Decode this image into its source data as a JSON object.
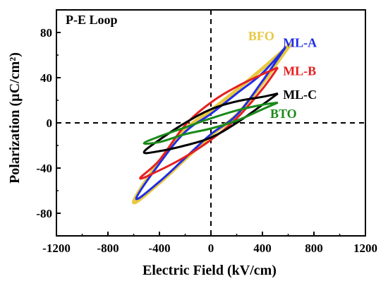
{
  "chart_data": {
    "type": "line",
    "title": "P-E Loop",
    "xlabel": "Electric Field (kV/cm)",
    "ylabel": "Polarization (µC/cm²)",
    "xlim": [
      -1200,
      1200
    ],
    "ylim": [
      -100,
      100
    ],
    "x_ticks": [
      -1200,
      -800,
      -400,
      0,
      400,
      800,
      1200
    ],
    "y_ticks": [
      -80,
      -40,
      0,
      40,
      80
    ],
    "grid": false,
    "legend": "direct labels near loop tips",
    "series": [
      {
        "name": "BFO",
        "color": "#e8c840",
        "upper": {
          "x": [
            620,
            500,
            400,
            200,
            0,
            -200,
            -400,
            -600
          ],
          "y": [
            70,
            58,
            48,
            29,
            11,
            -6,
            -34,
            -70
          ]
        },
        "lower": {
          "x": [
            -600,
            -400,
            -200,
            0,
            200,
            400,
            500,
            620
          ],
          "y": [
            -70,
            -53,
            -32,
            -11,
            7,
            35,
            51,
            70
          ]
        }
      },
      {
        "name": "ML-A",
        "color": "#1f2de6",
        "upper": {
          "x": [
            580,
            400,
            200,
            0,
            -200,
            -400,
            -580
          ],
          "y": [
            67,
            44,
            26,
            8,
            -8,
            -36,
            -67
          ]
        },
        "lower": {
          "x": [
            -580,
            -400,
            -200,
            0,
            200,
            400,
            580
          ],
          "y": [
            -67,
            -52,
            -31,
            -10,
            7,
            37,
            67
          ]
        }
      },
      {
        "name": "ML-B",
        "color": "#e62020",
        "upper": {
          "x": [
            520,
            400,
            200,
            0,
            -200,
            -400,
            -550
          ],
          "y": [
            49,
            43,
            32,
            18,
            -2,
            -33,
            -49
          ]
        },
        "lower": {
          "x": [
            -550,
            -400,
            -200,
            0,
            200,
            400,
            520
          ],
          "y": [
            -49,
            -42,
            -30,
            -15,
            4,
            30,
            49
          ]
        }
      },
      {
        "name": "ML-C",
        "color": "#000000",
        "upper": {
          "x": [
            520,
            400,
            200,
            0,
            -200,
            -400,
            -520
          ],
          "y": [
            26,
            23,
            19,
            12,
            0,
            -15,
            -26
          ]
        },
        "lower": {
          "x": [
            -520,
            -400,
            -200,
            0,
            200,
            400,
            520
          ],
          "y": [
            -26,
            -25,
            -20,
            -13,
            0,
            16,
            26
          ]
        }
      },
      {
        "name": "BTO",
        "color": "#1a8a1a",
        "upper": {
          "x": [
            520,
            400,
            200,
            0,
            -200,
            -400,
            -520
          ],
          "y": [
            18,
            16,
            11,
            4,
            -4,
            -12,
            -18
          ]
        },
        "lower": {
          "x": [
            -520,
            -400,
            -200,
            0,
            200,
            400,
            520
          ],
          "y": [
            -18,
            -17,
            -10,
            -5,
            2,
            12,
            18
          ]
        }
      }
    ],
    "labels": [
      {
        "text": "BFO",
        "x": 290,
        "y": 77,
        "color": "#e8c840"
      },
      {
        "text": "ML-A",
        "x": 560,
        "y": 71,
        "color": "#1f2de6"
      },
      {
        "text": "ML-B",
        "x": 560,
        "y": 46,
        "color": "#e62020"
      },
      {
        "text": "ML-C",
        "x": 560,
        "y": 25,
        "color": "#000000"
      },
      {
        "text": "BTO",
        "x": 460,
        "y": 8,
        "color": "#1a8a1a"
      }
    ]
  }
}
